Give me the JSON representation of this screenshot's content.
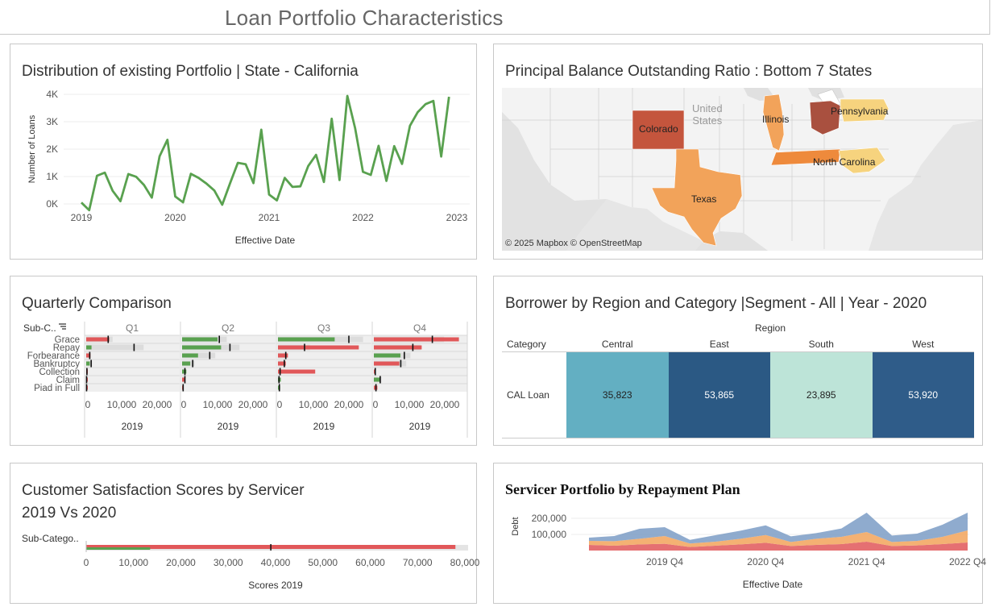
{
  "dashboard": {
    "title": "Loan Portfolio Characteristics"
  },
  "panels": {
    "distribution": {
      "title": "Distribution of existing Portfolio | State - California",
      "chart_data": {
        "type": "line",
        "title": "Distribution of existing Portfolio | State - California",
        "xlabel": "Effective Date",
        "ylabel": "Number of Loans",
        "x_ticks": [
          "2019",
          "2020",
          "2021",
          "2022",
          "2023"
        ],
        "y_ticks": [
          "0K",
          "1K",
          "2K",
          "3K",
          "4K"
        ],
        "ylim": [
          0,
          4000
        ],
        "xlim": [
          "2019-01",
          "2023-01"
        ],
        "grid": true,
        "color": "#59a14f",
        "x": [
          "2019-01",
          "2019-02",
          "2019-03",
          "2019-04",
          "2019-05",
          "2019-06",
          "2019-07",
          "2019-08",
          "2019-09",
          "2019-10",
          "2019-11",
          "2019-12",
          "2020-01",
          "2020-02",
          "2020-03",
          "2020-04",
          "2020-05",
          "2020-06",
          "2020-07",
          "2020-08",
          "2020-09",
          "2020-10",
          "2020-11",
          "2020-12",
          "2021-01",
          "2021-02",
          "2021-03",
          "2021-04",
          "2021-05",
          "2021-06",
          "2021-07",
          "2021-08",
          "2021-09",
          "2021-10",
          "2021-11",
          "2021-12",
          "2022-01",
          "2022-02",
          "2022-03",
          "2022-04",
          "2022-05",
          "2022-06",
          "2022-07",
          "2022-08",
          "2022-09",
          "2022-10",
          "2022-11",
          "2022-12"
        ],
        "values": [
          50,
          -230,
          1030,
          1140,
          480,
          100,
          1090,
          990,
          690,
          230,
          1740,
          2340,
          270,
          60,
          1100,
          950,
          740,
          490,
          -30,
          750,
          1500,
          1450,
          760,
          2710,
          340,
          130,
          950,
          620,
          640,
          1380,
          1790,
          800,
          3110,
          870,
          3940,
          2760,
          1170,
          1060,
          2120,
          840,
          2110,
          1460,
          2850,
          3350,
          3640,
          3760,
          1730,
          3910
        ]
      }
    },
    "map": {
      "title": "Principal Balance Outstanding Ratio : Bottom 7 States",
      "country_label": [
        "United",
        "States"
      ],
      "states": [
        {
          "name": "Colorado",
          "color": "#c4553d"
        },
        {
          "name": "Illinois",
          "color": "#f2a35a"
        },
        {
          "name": "Pennsylvania",
          "color": "#f6d37e"
        },
        {
          "name": "North Carolina",
          "color": "#f6d37e"
        },
        {
          "name": "Texas",
          "color": "#f2a35a"
        },
        {
          "name": "",
          "color": "#a9503f"
        },
        {
          "name": "",
          "color": "#ee8a3c"
        }
      ],
      "attribution": "© 2025 Mapbox  © OpenStreetMap"
    },
    "quarterly": {
      "title": "Quarterly Comparison",
      "row_header": "Sub-C..",
      "quarters": [
        "Q1",
        "Q2",
        "Q3",
        "Q4"
      ],
      "year": "2019",
      "categories": [
        "Grace",
        "Repay",
        "Forbearance",
        "Bankruptcy",
        "Collection",
        "Claim",
        "Piad in Full"
      ],
      "x_ticks": [
        "0",
        "10,000",
        "20,000"
      ],
      "chart_data": {
        "type": "bar",
        "categories": [
          "Grace",
          "Repay",
          "Forbearance",
          "Bankruptcy",
          "Collection",
          "Claim",
          "Piad in Full"
        ],
        "xlim": [
          0,
          25000
        ],
        "series": [
          {
            "values": [
              6500,
              1500,
              1200,
              1000,
              200,
              100,
              100
            ],
            "colors": [
              "red",
              "green",
              "red",
              "green",
              "red",
              "red",
              "red"
            ],
            "targets": [
              6200,
              13500,
              1000,
              1400,
              200,
              100,
              100
            ]
          },
          {
            "values": [
              10000,
              11000,
              4500,
              2300,
              1200,
              800,
              300
            ],
            "colors": [
              "green",
              "green",
              "green",
              "green",
              "green",
              "red",
              "red"
            ],
            "targets": [
              10500,
              13500,
              7800,
              3000,
              800,
              800,
              300
            ]
          },
          {
            "values": [
              16000,
              22800,
              2800,
              2200,
              10500,
              800,
              600
            ],
            "colors": [
              "green",
              "red",
              "red",
              "red",
              "red",
              "green",
              "green"
            ],
            "targets": [
              20000,
              7500,
              2200,
              1800,
              600,
              300,
              400
            ]
          },
          {
            "values": [
              24000,
              13500,
              7500,
              7200,
              500,
              1800,
              1000
            ],
            "colors": [
              "red",
              "red",
              "green",
              "red",
              "red",
              "green",
              "red"
            ],
            "targets": [
              16500,
              11000,
              8600,
              7600,
              400,
              1800,
              600
            ]
          }
        ]
      }
    },
    "heatmap": {
      "title": "Borrower by Region and Category |Segment - All | Year - 2020",
      "col_group": "Region",
      "row_header": "Category",
      "chart_data": {
        "type": "heatmap",
        "columns": [
          "Central",
          "East",
          "South",
          "West"
        ],
        "rows": [
          "CAL Loan"
        ],
        "values": [
          [
            "35,823",
            "53,865",
            "23,895",
            "53,920"
          ]
        ],
        "colors": [
          "#63afc2",
          "#2b5984",
          "#bde4d8",
          "#2f5c89"
        ],
        "text_colors": [
          "#222",
          "#fff",
          "#222",
          "#fff"
        ]
      }
    },
    "satisfaction": {
      "title_line1": "Customer Satisfaction Scores by Servicer",
      "title_line2": "2019 Vs 2020",
      "row_header": "Sub-Catego..",
      "chart_data": {
        "type": "bar",
        "xlabel": "Scores 2019",
        "x_ticks": [
          "0",
          "10,000",
          "20,000",
          "30,000",
          "40,000",
          "50,000",
          "60,000",
          "70,000",
          "80,000"
        ],
        "xlim": [
          0,
          80000
        ],
        "values": [
          78000,
          13500
        ],
        "target": 39000
      }
    },
    "servicer": {
      "title": "Servicer Portfolio by Repayment Plan",
      "chart_data": {
        "type": "area",
        "title": "Servicer Portfolio by Repayment Plan",
        "xlabel": "Effective Date",
        "ylabel": "Debt",
        "x_ticks": [
          "2019 Q4",
          "2020 Q4",
          "2021 Q4",
          "2022 Q4"
        ],
        "y_ticks": [
          "100,000",
          "200,000"
        ],
        "ylim": [
          0,
          300000
        ],
        "x": [
          "2019 Q1",
          "2019 Q2",
          "2019 Q3",
          "2019 Q4",
          "2020 Q1",
          "2020 Q2",
          "2020 Q3",
          "2020 Q4",
          "2021 Q1",
          "2021 Q2",
          "2021 Q3",
          "2021 Q4",
          "2022 Q1",
          "2022 Q2",
          "2022 Q3",
          "2022 Q4"
        ],
        "series": [
          {
            "color": "#e15759",
            "values": [
              35000,
              30000,
              38000,
              42000,
              22000,
              30000,
              38000,
              48000,
              28000,
              35000,
              40000,
              55000,
              28000,
              32000,
              40000,
              50000
            ]
          },
          {
            "color": "#f2a35a",
            "values": [
              25000,
              28000,
              35000,
              48000,
              22000,
              25000,
              35000,
              48000,
              25000,
              38000,
              45000,
              60000,
              25000,
              28000,
              45000,
              75000
            ]
          },
          {
            "color": "#7b9cc5",
            "values": [
              20000,
              32000,
              62000,
              55000,
              22000,
              40000,
              50000,
              60000,
              35000,
              35000,
              52000,
              120000,
              40000,
              45000,
              75000,
              110000
            ]
          }
        ]
      }
    }
  }
}
